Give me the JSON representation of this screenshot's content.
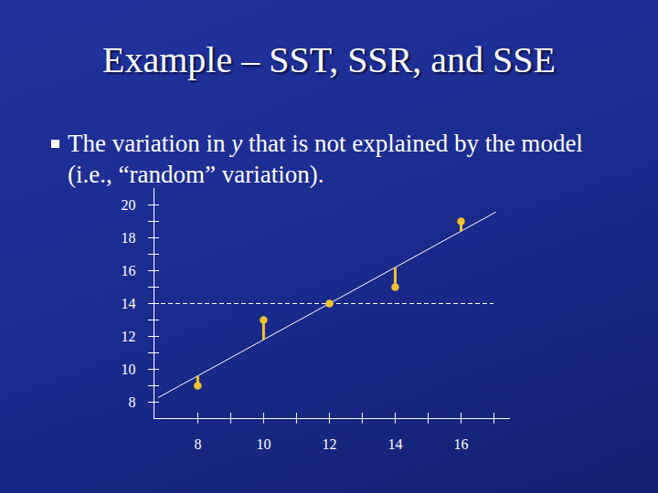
{
  "title": "Example – SST, SSR, and SSE",
  "bullet": {
    "before": "The variation in ",
    "italic": "y",
    "after": " that is not explained by the model (i.e., “random” variation)."
  },
  "chart_data": {
    "type": "scatter",
    "x": [
      8,
      10,
      12,
      14,
      16
    ],
    "values": [
      9,
      13,
      14,
      15,
      19
    ],
    "fitted": [
      9.6,
      11.8,
      14,
      16.2,
      18.4
    ],
    "fit_line": {
      "x": [
        6.8,
        17.05
      ],
      "y": [
        8.28,
        19.56
      ]
    },
    "mean_line": {
      "y": 14,
      "x": [
        6.67,
        17
      ]
    },
    "color": "#f2c12e",
    "xlim": [
      6.67,
      17.5
    ],
    "ylim": [
      7,
      21
    ],
    "xticks": [
      8,
      10,
      12,
      14,
      16
    ],
    "yticks": [
      8,
      10,
      12,
      14,
      16,
      18,
      20
    ],
    "xticks_minor": [
      8,
      9,
      10,
      11,
      12,
      13,
      14,
      15,
      16,
      17
    ],
    "yticks_minor": [
      8,
      9,
      10,
      11,
      12,
      13,
      14,
      15,
      16,
      17,
      18,
      19,
      20
    ]
  }
}
